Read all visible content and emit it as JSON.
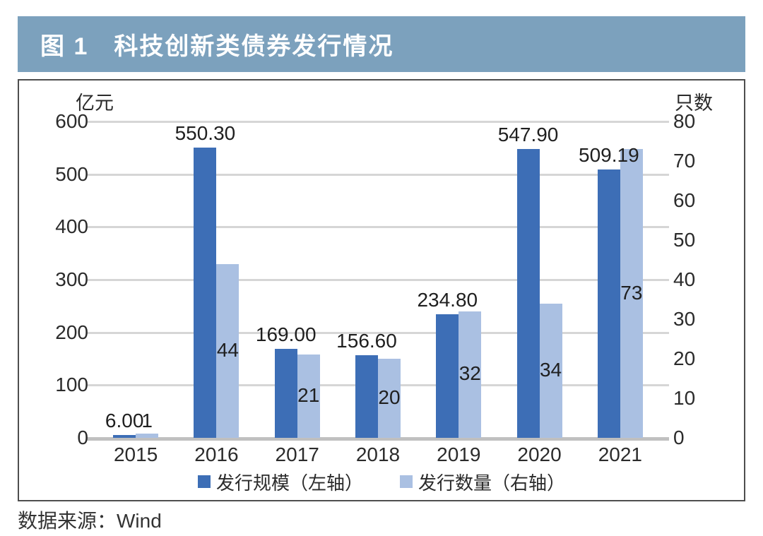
{
  "header": {
    "title": "图 1　科技创新类债券发行情况"
  },
  "chart_data": {
    "type": "bar",
    "title": "科技创新类债券发行情况",
    "categories": [
      "2015",
      "2016",
      "2017",
      "2018",
      "2019",
      "2020",
      "2021"
    ],
    "series": [
      {
        "name": "发行规模（左轴）",
        "axis": "left",
        "values": [
          6.0,
          550.3,
          169.0,
          156.6,
          234.8,
          547.9,
          509.19
        ],
        "labels": [
          "6.00",
          "550.30",
          "169.00",
          "156.60",
          "234.80",
          "547.90",
          "509.19"
        ]
      },
      {
        "name": "发行数量（右轴）",
        "axis": "right",
        "values": [
          1,
          44,
          21,
          20,
          32,
          34,
          73
        ],
        "labels": [
          "1",
          "44",
          "21",
          "20",
          "32",
          "34",
          "73"
        ]
      }
    ],
    "left_axis": {
      "name": "亿元",
      "min": 0,
      "max": 600,
      "ticks": [
        600,
        500,
        400,
        300,
        200,
        100,
        0
      ]
    },
    "right_axis": {
      "name": "只数",
      "min": 0,
      "max": 80,
      "ticks": [
        80,
        70,
        60,
        50,
        40,
        30,
        20,
        10,
        0
      ]
    },
    "grid": "horizontal",
    "legend_position": "bottom"
  },
  "source": {
    "text": "数据来源：Wind"
  },
  "colors": {
    "title_bar_bg": "#7ca1bd",
    "title_text": "#ffffff",
    "bar_dark": "#3d6eb6",
    "bar_light": "#aac0e2",
    "gridline": "#d6d6d6",
    "baseline": "#c0c0c0",
    "text": "#2b2b2b",
    "border": "#4e4e4e"
  }
}
